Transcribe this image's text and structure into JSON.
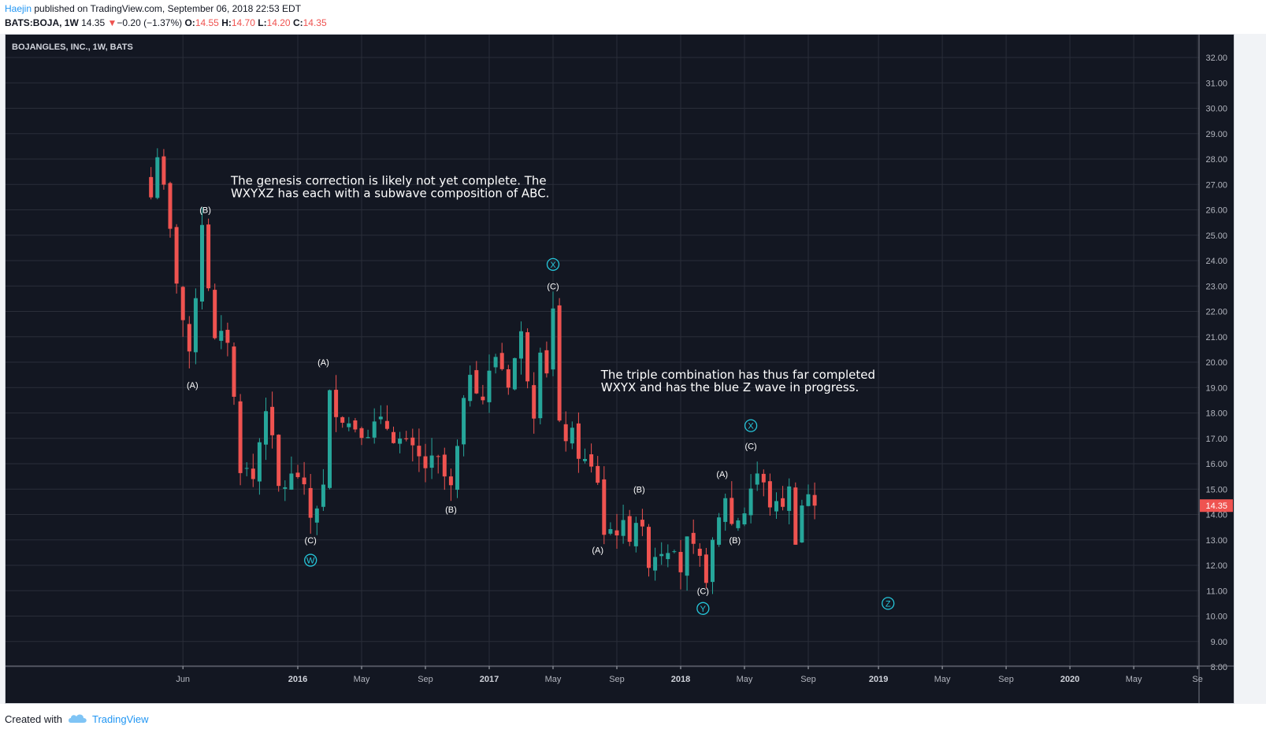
{
  "header": {
    "author": "Haejin",
    "published_text": " published on TradingView.com, September 06, 2018 22:53 EDT",
    "symbol": "BATS:BOJA, 1W",
    "last": "14.35",
    "change_arrow": "▼",
    "change": "−0.20 (−1.37%)",
    "open_label": "O:",
    "open": "14.55",
    "high_label": "H:",
    "high": "14.70",
    "low_label": "L:",
    "low": "14.20",
    "close_label": "C:",
    "close": "14.35"
  },
  "footer": {
    "created_with": "Created with",
    "brand": "TradingView"
  },
  "colors": {
    "up": "#26a69a",
    "down": "#ef5350",
    "bg": "#131722",
    "grid": "#2a2e39",
    "text": "#b2b5be",
    "wave_blue": "#26c6da",
    "annotation": "#ffffff"
  },
  "chart_data": {
    "type": "candlestick",
    "title": "BOJANGLES, INC., 1W, BATS",
    "ylim": [
      8,
      32.5
    ],
    "y_ticks": [
      "32.00",
      "31.00",
      "30.00",
      "29.00",
      "28.00",
      "27.00",
      "26.00",
      "25.00",
      "24.00",
      "23.00",
      "22.00",
      "21.00",
      "20.00",
      "19.00",
      "18.00",
      "17.00",
      "16.00",
      "15.00",
      "14.00",
      "13.00",
      "12.00",
      "11.00",
      "10.00",
      "9.00",
      "8.00"
    ],
    "x_ticks": [
      {
        "label": "Jun",
        "week": 2
      },
      {
        "label": "2016",
        "week": 20,
        "bold": true
      },
      {
        "label": "May",
        "week": 30
      },
      {
        "label": "Sep",
        "week": 40
      },
      {
        "label": "2017",
        "week": 50,
        "bold": true
      },
      {
        "label": "May",
        "week": 60
      },
      {
        "label": "Sep",
        "week": 70
      },
      {
        "label": "2018",
        "week": 80,
        "bold": true
      },
      {
        "label": "May",
        "week": 90
      },
      {
        "label": "Sep",
        "week": 100
      },
      {
        "label": "2019",
        "week": 111,
        "bold": true
      },
      {
        "label": "May",
        "week": 121
      },
      {
        "label": "Sep",
        "week": 131
      },
      {
        "label": "2020",
        "week": 141,
        "bold": true
      },
      {
        "label": "May",
        "week": 151
      },
      {
        "label": "Se",
        "week": 161
      }
    ],
    "last_price_label": "14.35",
    "last_price": 14.35,
    "key_prices": [
      {
        "week": -3,
        "price": 26.5
      },
      {
        "week": -2,
        "price": 28.3
      },
      {
        "week": 0,
        "price": 25.0
      },
      {
        "week": 3,
        "price": 20.0
      },
      {
        "week": 5,
        "price": 25.6
      },
      {
        "week": 7,
        "price": 20.7
      },
      {
        "week": 9,
        "price": 21.0
      },
      {
        "week": 11,
        "price": 16.0
      },
      {
        "week": 13,
        "price": 15.4
      },
      {
        "week": 15,
        "price": 18.4
      },
      {
        "week": 17,
        "price": 15.0
      },
      {
        "week": 20,
        "price": 15.6
      },
      {
        "week": 22,
        "price": 13.9
      },
      {
        "week": 24,
        "price": 15.0
      },
      {
        "week": 25,
        "price": 18.6
      },
      {
        "week": 28,
        "price": 17.6
      },
      {
        "week": 31,
        "price": 17.4
      },
      {
        "week": 34,
        "price": 17.5
      },
      {
        "week": 37,
        "price": 16.6
      },
      {
        "week": 40,
        "price": 15.9
      },
      {
        "week": 42,
        "price": 16.0
      },
      {
        "week": 44,
        "price": 14.9
      },
      {
        "week": 45,
        "price": 16.5
      },
      {
        "week": 47,
        "price": 19.8
      },
      {
        "week": 49,
        "price": 18.6
      },
      {
        "week": 51,
        "price": 20.3
      },
      {
        "week": 53,
        "price": 19.3
      },
      {
        "week": 55,
        "price": 21.0
      },
      {
        "week": 57,
        "price": 18.2
      },
      {
        "week": 58,
        "price": 20.8
      },
      {
        "week": 59,
        "price": 19.8
      },
      {
        "week": 60,
        "price": 22.0
      },
      {
        "week": 61,
        "price": 17.3
      },
      {
        "week": 63,
        "price": 17.0
      },
      {
        "week": 65,
        "price": 16.0
      },
      {
        "week": 67,
        "price": 15.4
      },
      {
        "week": 68,
        "price": 13.3
      },
      {
        "week": 70,
        "price": 13.5
      },
      {
        "week": 72,
        "price": 13.3
      },
      {
        "week": 73,
        "price": 13.9
      },
      {
        "week": 75,
        "price": 12.3
      },
      {
        "week": 77,
        "price": 12.7
      },
      {
        "week": 79,
        "price": 13.0
      },
      {
        "week": 80,
        "price": 11.9
      },
      {
        "week": 81,
        "price": 12.8
      },
      {
        "week": 83,
        "price": 12.0
      },
      {
        "week": 84,
        "price": 11.7
      },
      {
        "week": 85,
        "price": 12.6
      },
      {
        "week": 87,
        "price": 14.8
      },
      {
        "week": 88,
        "price": 13.6
      },
      {
        "week": 90,
        "price": 14.2
      },
      {
        "week": 91,
        "price": 15.1
      },
      {
        "week": 92,
        "price": 15.6
      },
      {
        "week": 94,
        "price": 14.5
      },
      {
        "week": 95,
        "price": 14.2
      },
      {
        "week": 97,
        "price": 14.9
      },
      {
        "week": 98,
        "price": 13.2
      },
      {
        "week": 99,
        "price": 14.4
      },
      {
        "week": 100,
        "price": 14.8
      },
      {
        "week": 101,
        "price": 14.35
      }
    ],
    "wave_labels": [
      {
        "text": "(B)",
        "week": 5.5,
        "price": 26.0,
        "style": "white"
      },
      {
        "text": "(A)",
        "week": 3.5,
        "price": 19.1,
        "style": "white"
      },
      {
        "text": "(A)",
        "week": 24,
        "price": 20.0,
        "style": "white"
      },
      {
        "text": "(C)",
        "week": 22,
        "price": 13.0,
        "style": "white"
      },
      {
        "text": "W",
        "week": 22,
        "price": 12.2,
        "style": "circle"
      },
      {
        "text": "(B)",
        "week": 44,
        "price": 14.2,
        "style": "white"
      },
      {
        "text": "X",
        "week": 60,
        "price": 23.85,
        "style": "circle"
      },
      {
        "text": "(C)",
        "week": 60,
        "price": 23.0,
        "style": "white"
      },
      {
        "text": "(A)",
        "week": 67,
        "price": 12.6,
        "style": "white"
      },
      {
        "text": "(B)",
        "week": 73.5,
        "price": 15.0,
        "style": "white"
      },
      {
        "text": "(C)",
        "week": 83.5,
        "price": 11.0,
        "style": "white"
      },
      {
        "text": "Y",
        "week": 83.5,
        "price": 10.3,
        "style": "circle"
      },
      {
        "text": "(A)",
        "week": 86.5,
        "price": 15.6,
        "style": "white"
      },
      {
        "text": "(B)",
        "week": 88.5,
        "price": 13.0,
        "style": "white"
      },
      {
        "text": "X",
        "week": 91,
        "price": 17.5,
        "style": "circle"
      },
      {
        "text": "(C)",
        "week": 91,
        "price": 16.7,
        "style": "white"
      },
      {
        "text": "Z",
        "week": 112.5,
        "price": 10.5,
        "style": "circle"
      }
    ],
    "annotations": [
      {
        "lines": [
          "The genesis correction is likely not yet complete. The",
          "WXYXZ has each with a subwave composition of ABC."
        ],
        "week": 9.5,
        "price": 27.0
      },
      {
        "lines": [
          "The triple combination has thus far completed",
          "WXYX and has the blue Z wave in progress."
        ],
        "week": 67.5,
        "price": 19.35
      }
    ]
  }
}
